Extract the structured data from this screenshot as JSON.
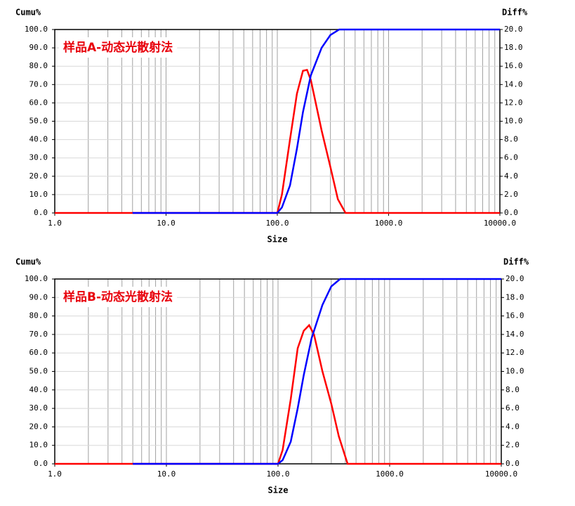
{
  "chart_data": [
    {
      "type": "line",
      "annotation": "样品A-动态光散射法",
      "x_label": "Size",
      "y_label": "Cumu%",
      "y2_label": "Diff%",
      "log_x": true,
      "grid": true,
      "xlim": [
        1,
        10000
      ],
      "xticks": [
        {
          "value": 1,
          "label": "1.0"
        },
        {
          "value": 10,
          "label": "10.0"
        },
        {
          "value": 100,
          "label": "100.0"
        },
        {
          "value": 1000,
          "label": "1000.0"
        },
        {
          "value": 10000,
          "label": "10000.0"
        }
      ],
      "ylim": [
        0,
        100
      ],
      "yticks": [
        {
          "value": 0,
          "label": "0.0"
        },
        {
          "value": 10,
          "label": "10.0"
        },
        {
          "value": 20,
          "label": "20.0"
        },
        {
          "value": 30,
          "label": "30.0"
        },
        {
          "value": 40,
          "label": "40.0"
        },
        {
          "value": 50,
          "label": "50.0"
        },
        {
          "value": 60,
          "label": "60.0"
        },
        {
          "value": 70,
          "label": "70.0"
        },
        {
          "value": 80,
          "label": "80.0"
        },
        {
          "value": 90,
          "label": "90.0"
        },
        {
          "value": 100,
          "label": "100.0"
        }
      ],
      "y2lim": [
        0,
        20
      ],
      "y2ticks": [
        {
          "value": 0,
          "label": "0.0"
        },
        {
          "value": 2,
          "label": "2.0"
        },
        {
          "value": 4,
          "label": "4.0"
        },
        {
          "value": 6,
          "label": "6.0"
        },
        {
          "value": 8,
          "label": "8.0"
        },
        {
          "value": 10,
          "label": "10.0"
        },
        {
          "value": 12,
          "label": "12.0"
        },
        {
          "value": 14,
          "label": "14.0"
        },
        {
          "value": 16,
          "label": "16.0"
        },
        {
          "value": 18,
          "label": "18.0"
        },
        {
          "value": 20,
          "label": "20.0"
        }
      ],
      "series": [
        {
          "color": "#0000ff",
          "x": [
            5,
            100,
            110,
            130,
            150,
            170,
            200,
            250,
            300,
            360,
            10000
          ],
          "values": [
            0,
            0,
            3,
            15,
            35,
            55,
            75,
            90,
            97,
            100,
            100
          ]
        },
        {
          "color": "#ff0000",
          "axis": "y2",
          "x": [
            1,
            100,
            110,
            130,
            150,
            170,
            185,
            200,
            250,
            300,
            350,
            410,
            10000
          ],
          "values": [
            0,
            0,
            2,
            8,
            13,
            15.5,
            15.6,
            14.5,
            9,
            5,
            1.5,
            0,
            0
          ]
        }
      ]
    },
    {
      "type": "line",
      "annotation": "样品B-动态光散射法",
      "x_label": "Size",
      "y_label": "Cumu%",
      "y2_label": "Diff%",
      "log_x": true,
      "grid": true,
      "xlim": [
        1,
        10000
      ],
      "xticks": [
        {
          "value": 1,
          "label": "1.0"
        },
        {
          "value": 10,
          "label": "10.0"
        },
        {
          "value": 100,
          "label": "100.0"
        },
        {
          "value": 1000,
          "label": "1000.0"
        },
        {
          "value": 10000,
          "label": "10000.0"
        }
      ],
      "ylim": [
        0,
        100
      ],
      "yticks": [
        {
          "value": 0,
          "label": "0.0"
        },
        {
          "value": 10,
          "label": "10.0"
        },
        {
          "value": 20,
          "label": "20.0"
        },
        {
          "value": 30,
          "label": "30.0"
        },
        {
          "value": 40,
          "label": "40.0"
        },
        {
          "value": 50,
          "label": "50.0"
        },
        {
          "value": 60,
          "label": "60.0"
        },
        {
          "value": 70,
          "label": "70.0"
        },
        {
          "value": 80,
          "label": "80.0"
        },
        {
          "value": 90,
          "label": "90.0"
        },
        {
          "value": 100,
          "label": "100.0"
        }
      ],
      "y2lim": [
        0,
        20
      ],
      "y2ticks": [
        {
          "value": 0,
          "label": "0.0"
        },
        {
          "value": 2,
          "label": "2.0"
        },
        {
          "value": 4,
          "label": "4.0"
        },
        {
          "value": 6,
          "label": "6.0"
        },
        {
          "value": 8,
          "label": "8.0"
        },
        {
          "value": 10,
          "label": "10.0"
        },
        {
          "value": 12,
          "label": "12.0"
        },
        {
          "value": 14,
          "label": "14.0"
        },
        {
          "value": 16,
          "label": "16.0"
        },
        {
          "value": 18,
          "label": "18.0"
        },
        {
          "value": 20,
          "label": "20.0"
        }
      ],
      "series": [
        {
          "color": "#0000ff",
          "x": [
            5,
            100,
            110,
            130,
            150,
            170,
            200,
            250,
            300,
            360,
            10000
          ],
          "values": [
            0,
            0,
            2,
            12,
            30,
            48,
            68,
            86,
            96,
            100,
            100
          ]
        },
        {
          "color": "#ff0000",
          "axis": "y2",
          "x": [
            1,
            100,
            110,
            130,
            150,
            170,
            190,
            210,
            250,
            300,
            350,
            420,
            10000
          ],
          "values": [
            0,
            0,
            1.5,
            7,
            12.5,
            14.4,
            15,
            14,
            10,
            6.5,
            3,
            0,
            0
          ]
        }
      ]
    }
  ]
}
